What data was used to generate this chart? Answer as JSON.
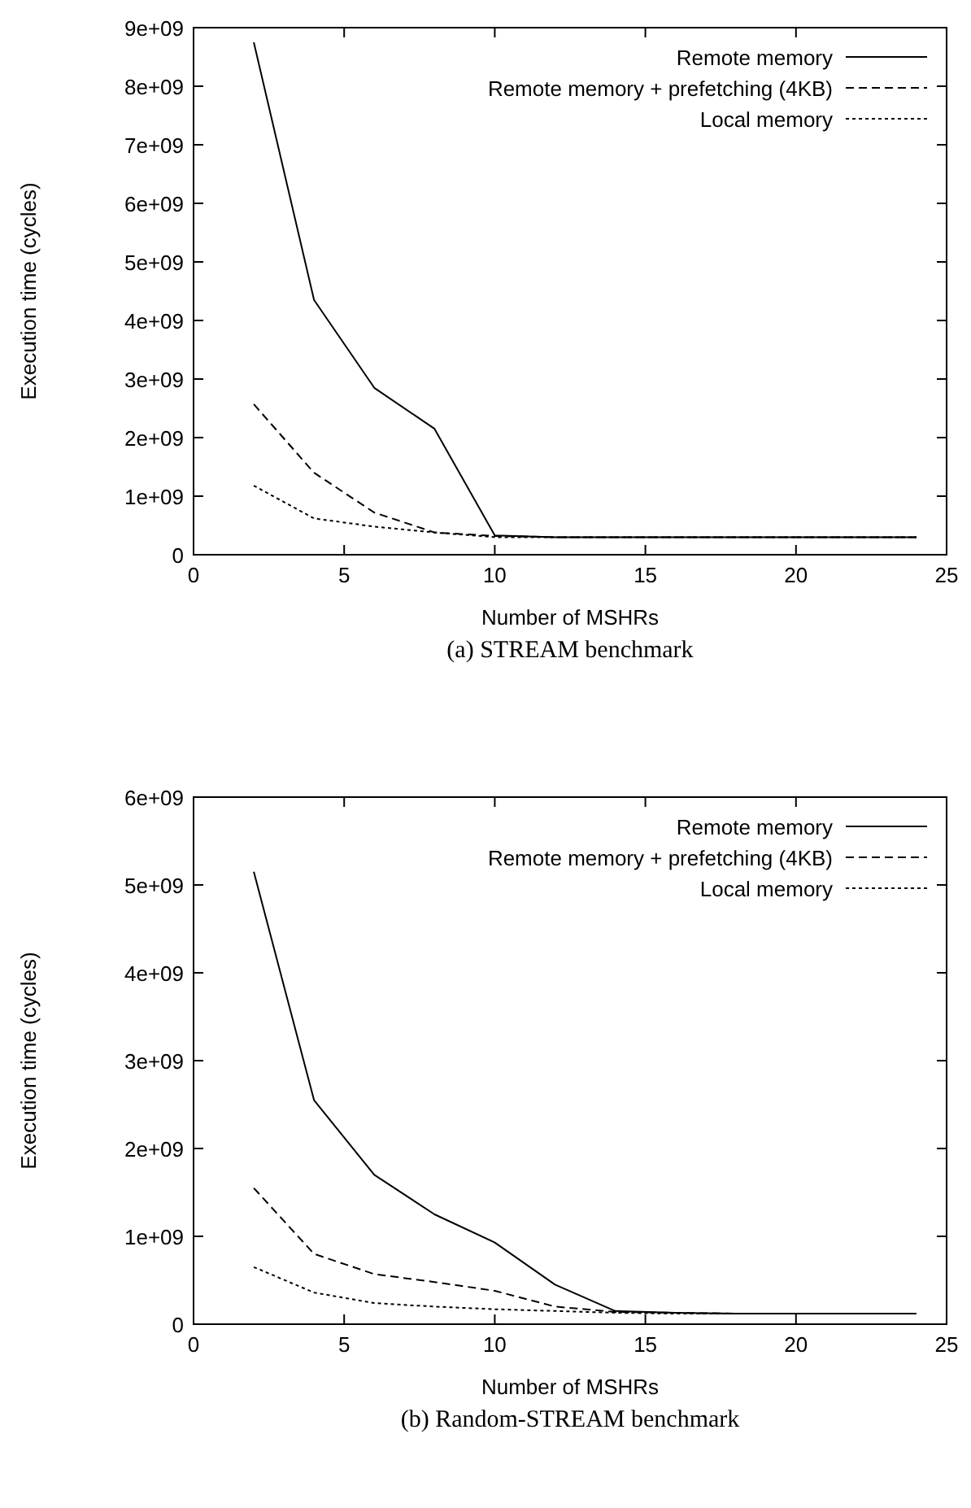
{
  "chart_data": [
    {
      "type": "line",
      "xlabel": "Number of MSHRs",
      "ylabel": "Execution time (cycles)",
      "annotations": [
        "(a) STREAM benchmark"
      ],
      "legend": "top right",
      "xlim": [
        0,
        25
      ],
      "xticks": [
        0,
        5,
        10,
        15,
        20,
        25
      ],
      "ylim": [
        0,
        9000000000
      ],
      "yticks": [
        {
          "value": 0,
          "label": "0"
        },
        {
          "value": 1000000000,
          "label": "1e+09"
        },
        {
          "value": 2000000000,
          "label": "2e+09"
        },
        {
          "value": 3000000000,
          "label": "3e+09"
        },
        {
          "value": 4000000000,
          "label": "4e+09"
        },
        {
          "value": 5000000000,
          "label": "5e+09"
        },
        {
          "value": 6000000000,
          "label": "6e+09"
        },
        {
          "value": 7000000000,
          "label": "7e+09"
        },
        {
          "value": 8000000000,
          "label": "8e+09"
        },
        {
          "value": 9000000000,
          "label": "9e+09"
        }
      ],
      "x": [
        2,
        4,
        6,
        8,
        10,
        12,
        14,
        16,
        18,
        20,
        22,
        24
      ],
      "series": [
        {
          "name": "Remote memory",
          "color": "#000000",
          "line_style": "solid",
          "values": [
            8750000000,
            4350000000,
            2850000000,
            2150000000,
            330000000,
            300000000,
            300000000,
            300000000,
            300000000,
            300000000,
            300000000,
            300000000
          ]
        },
        {
          "name": "Remote memory + prefetching (4KB)",
          "color": "#000000",
          "line_style": "dashed",
          "values": [
            2570000000,
            1400000000,
            720000000,
            380000000,
            320000000,
            300000000,
            300000000,
            300000000,
            300000000,
            300000000,
            300000000,
            300000000
          ]
        },
        {
          "name": "Local memory",
          "color": "#000000",
          "line_style": "dotted",
          "values": [
            1180000000,
            620000000,
            480000000,
            380000000,
            300000000,
            300000000,
            300000000,
            300000000,
            300000000,
            300000000,
            300000000,
            300000000
          ]
        }
      ]
    },
    {
      "type": "line",
      "xlabel": "Number of MSHRs",
      "ylabel": "Execution time (cycles)",
      "annotations": [
        "(b) Random-STREAM benchmark"
      ],
      "legend": "top right",
      "xlim": [
        0,
        25
      ],
      "xticks": [
        0,
        5,
        10,
        15,
        20,
        25
      ],
      "ylim": [
        0,
        6000000000
      ],
      "yticks": [
        {
          "value": 0,
          "label": "0"
        },
        {
          "value": 1000000000,
          "label": "1e+09"
        },
        {
          "value": 2000000000,
          "label": "2e+09"
        },
        {
          "value": 3000000000,
          "label": "3e+09"
        },
        {
          "value": 4000000000,
          "label": "4e+09"
        },
        {
          "value": 5000000000,
          "label": "5e+09"
        },
        {
          "value": 6000000000,
          "label": "6e+09"
        }
      ],
      "x": [
        2,
        4,
        6,
        8,
        10,
        12,
        14,
        16,
        18,
        20,
        22,
        24
      ],
      "series": [
        {
          "name": "Remote memory",
          "color": "#000000",
          "line_style": "solid",
          "values": [
            5150000000,
            2550000000,
            1700000000,
            1250000000,
            930000000,
            450000000,
            150000000,
            130000000,
            120000000,
            120000000,
            120000000,
            120000000
          ]
        },
        {
          "name": "Remote memory + prefetching (4KB)",
          "color": "#000000",
          "line_style": "dashed",
          "values": [
            1550000000,
            800000000,
            570000000,
            480000000,
            380000000,
            200000000,
            140000000,
            130000000,
            120000000,
            120000000,
            120000000,
            120000000
          ]
        },
        {
          "name": "Local memory",
          "color": "#000000",
          "line_style": "dotted",
          "values": [
            650000000,
            360000000,
            240000000,
            200000000,
            170000000,
            150000000,
            130000000,
            120000000,
            120000000,
            120000000,
            120000000,
            120000000
          ]
        }
      ]
    }
  ]
}
